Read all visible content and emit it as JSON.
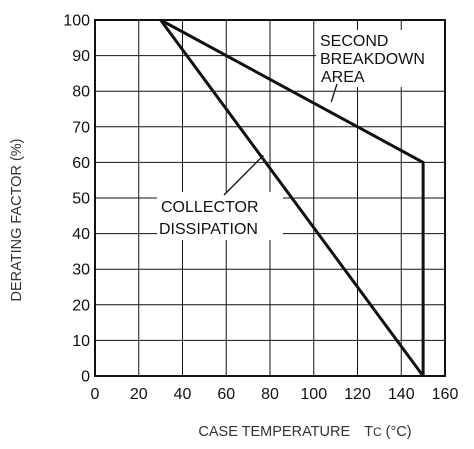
{
  "chart_data": {
    "type": "line",
    "xlabel": "CASE TEMPERATURE",
    "xlabel_unit": {
      "symbol": "T",
      "subscript": "C",
      "unit": "(°C)"
    },
    "ylabel": "DERATING FACTOR (%)",
    "xlim": [
      0,
      160
    ],
    "ylim": [
      0,
      100
    ],
    "x_ticks": [
      0,
      20,
      40,
      60,
      80,
      100,
      120,
      140,
      160
    ],
    "y_ticks": [
      0,
      10,
      20,
      30,
      40,
      50,
      60,
      70,
      80,
      90,
      100
    ],
    "grid": true,
    "series": [
      {
        "name": "COLLECTOR DISSIPATION",
        "points": [
          [
            30,
            100
          ],
          [
            150,
            0
          ]
        ]
      },
      {
        "name": "SECOND BREAKDOWN AREA",
        "points": [
          [
            30,
            100
          ],
          [
            150,
            60
          ],
          [
            150,
            0
          ]
        ]
      }
    ],
    "annotations": [
      {
        "lines": [
          "SECOND",
          "BREAKDOWN",
          "AREA"
        ],
        "target": [
          108,
          77
        ]
      },
      {
        "lines": [
          "COLLECTOR",
          "DISSIPATION"
        ],
        "target": [
          77,
          62
        ]
      }
    ]
  }
}
